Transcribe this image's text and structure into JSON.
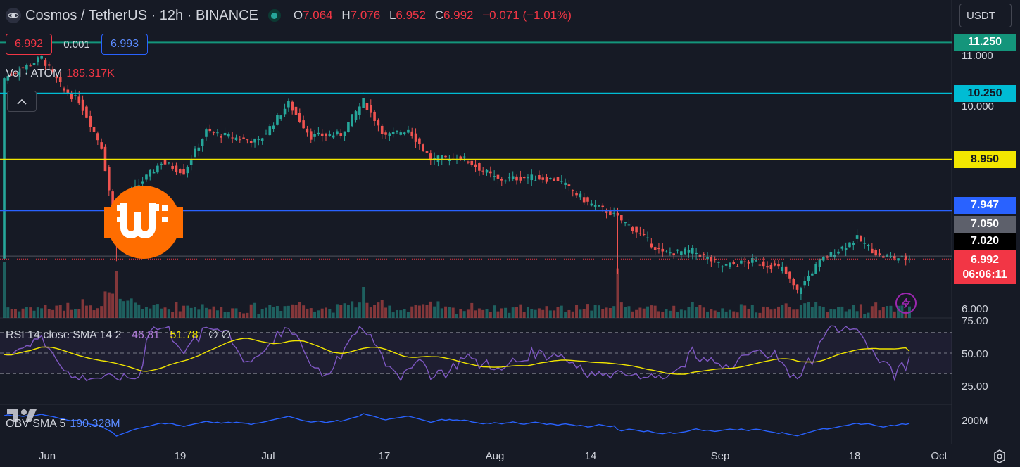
{
  "header": {
    "title": "Cosmos / TetherUS · 12h · BINANCE",
    "ohlc": [
      {
        "key": "O",
        "value": "7.064"
      },
      {
        "key": "H",
        "value": "7.076"
      },
      {
        "key": "L",
        "value": "6.952"
      },
      {
        "key": "C",
        "value": "6.992"
      }
    ],
    "change": "−0.071 (−1.01%)"
  },
  "currency_button": "USDT",
  "trade": {
    "sell": "6.992",
    "spread": "0.001",
    "buy": "6.993"
  },
  "volume": {
    "label": "Vol · ATOM",
    "value": "185.317K"
  },
  "rsi_legend": {
    "label": "RSI 14 close SMA 14 2",
    "rsi": "46.81",
    "sma": "51.78",
    "extra": "∅ ∅"
  },
  "obv_legend": {
    "label": "OBV SMA 5",
    "value": "190.328M"
  },
  "price_axis": {
    "ticks": [
      "11.000",
      "10.000",
      "6.000"
    ],
    "levels": [
      {
        "value": "11.250",
        "color": "#14957b",
        "text": "#ffffff"
      },
      {
        "value": "10.250",
        "color": "#00bcd4",
        "text": "#131722"
      },
      {
        "value": "8.950",
        "color": "#f2e600",
        "text": "#131722"
      },
      {
        "value": "7.947",
        "color": "#2962ff",
        "text": "#ffffff"
      },
      {
        "value": "7.050",
        "color": "#5d606b",
        "text": "#ffffff"
      },
      {
        "value": "7.020",
        "color": "#000000",
        "text": "#ffffff"
      }
    ],
    "last_price": "6.992",
    "countdown": "06:06:11"
  },
  "rsi_axis": [
    "75.00",
    "50.00",
    "25.00"
  ],
  "obv_axis": [
    "200M"
  ],
  "time_axis": [
    "Jun",
    "19",
    "Jul",
    "17",
    "Aug",
    "14",
    "Sep",
    "18",
    "Oct"
  ],
  "colors": {
    "up": "#26a69a",
    "down": "#ef5350",
    "rsi": "#7e57c2",
    "rsi_sma": "#f2e600",
    "obv": "#2962ff"
  },
  "icons": [
    "cosmos-logo-icon",
    "market-status-icon",
    "collapse-chevron-icon",
    "lightning-icon",
    "settings-icon",
    "tradingview-logo",
    "whalecoin-logo"
  ],
  "chart_data": {
    "type": "candlestick",
    "title": "Cosmos / TetherUS · 12h · BINANCE",
    "interval": "12h",
    "x_range": [
      "2023-05-28",
      "2023-09-26"
    ],
    "y_range": [
      5.9,
      11.7
    ],
    "horizontal_levels": [
      11.25,
      10.25,
      8.95,
      7.947
    ],
    "price_path": [
      {
        "date": "2023-05-28",
        "close": 10.55
      },
      {
        "date": "2023-06-02",
        "close": 10.95
      },
      {
        "date": "2023-06-05",
        "close": 10.3
      },
      {
        "date": "2023-06-07",
        "close": 10.1
      },
      {
        "date": "2023-06-10",
        "close": 9.2
      },
      {
        "date": "2023-06-12",
        "close": 7.5
      },
      {
        "date": "2023-06-14",
        "close": 8.3
      },
      {
        "date": "2023-06-18",
        "close": 8.9
      },
      {
        "date": "2023-06-21",
        "close": 8.7
      },
      {
        "date": "2023-06-24",
        "close": 9.5
      },
      {
        "date": "2023-06-27",
        "close": 9.4
      },
      {
        "date": "2023-07-01",
        "close": 9.3
      },
      {
        "date": "2023-07-05",
        "close": 10.05
      },
      {
        "date": "2023-07-08",
        "close": 9.4
      },
      {
        "date": "2023-07-12",
        "close": 9.45
      },
      {
        "date": "2023-07-15",
        "close": 10.1
      },
      {
        "date": "2023-07-18",
        "close": 9.4
      },
      {
        "date": "2023-07-21",
        "close": 9.55
      },
      {
        "date": "2023-07-24",
        "close": 8.95
      },
      {
        "date": "2023-07-28",
        "close": 9.0
      },
      {
        "date": "2023-08-02",
        "close": 8.55
      },
      {
        "date": "2023-08-06",
        "close": 8.6
      },
      {
        "date": "2023-08-10",
        "close": 8.55
      },
      {
        "date": "2023-08-14",
        "close": 8.1
      },
      {
        "date": "2023-08-17",
        "close": 7.9
      },
      {
        "date": "2023-08-20",
        "close": 7.6
      },
      {
        "date": "2023-08-24",
        "close": 7.1
      },
      {
        "date": "2023-08-28",
        "close": 7.15
      },
      {
        "date": "2023-09-01",
        "close": 6.85
      },
      {
        "date": "2023-09-05",
        "close": 6.95
      },
      {
        "date": "2023-09-09",
        "close": 6.8
      },
      {
        "date": "2023-09-11",
        "close": 6.35
      },
      {
        "date": "2023-09-14",
        "close": 6.95
      },
      {
        "date": "2023-09-19",
        "close": 7.4
      },
      {
        "date": "2023-09-22",
        "close": 7.05
      },
      {
        "date": "2023-09-26",
        "close": 6.992
      }
    ],
    "rsi": {
      "range": [
        25,
        75
      ],
      "last": 46.81,
      "sma_last": 51.78
    },
    "obv": {
      "last": "190.328M"
    }
  }
}
